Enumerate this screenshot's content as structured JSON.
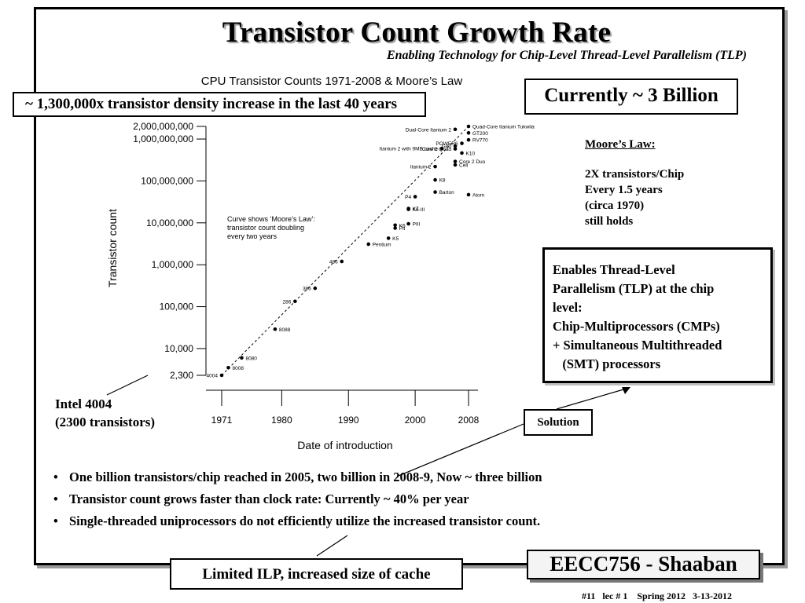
{
  "slide": {
    "title": "Transistor Count Growth Rate",
    "subtitle": "Enabling Technology for Chip-Level Thread-Level Parallelism (TLP)",
    "density_box": "~ 1,300,000x  transistor density increase in the last 40 years",
    "currently_box": "Currently ~ 3 Billion",
    "moores_law": {
      "heading": "Moore’s Law:",
      "lines": [
        "2X transistors/Chip",
        "Every 1.5 years",
        "(circa 1970)",
        "still holds"
      ]
    },
    "tlp_box": [
      "Enables Thread-Level",
      "Parallelism (TLP) at the chip",
      "level:",
      "Chip-Multiprocessors (CMPs)",
      "+ Simultaneous  Multithreaded",
      "   (SMT) processors"
    ],
    "intel_note": [
      "Intel 4004",
      "(2300 transistors)"
    ],
    "solution_box": "Solution",
    "bullets": [
      "One billion transistors/chip reached in 2005, two billion in 2008-9, Now ~ three billion",
      "Transistor count grows faster than clock rate: Currently  ~ 40% per year",
      "Single-threaded uniprocessors do not efficiently utilize the increased transistor count."
    ],
    "ilp_box": "Limited ILP, increased size of cache",
    "course_box": "EECC756 - Shaaban",
    "footer": "#11   lec # 1    Spring 2012   3-13-2012"
  },
  "chart_data": {
    "type": "scatter",
    "title": "CPU Transistor Counts 1971-2008 & Moore’s Law",
    "xlabel": "Date of introduction",
    "ylabel": "Transistor count",
    "y_scale": "log",
    "xlim": [
      1971,
      2008
    ],
    "x_ticks": [
      1971,
      1980,
      1990,
      2000,
      2008
    ],
    "y_ticks": [
      {
        "value": 2300,
        "label": "2,300"
      },
      {
        "value": 10000,
        "label": "10,000"
      },
      {
        "value": 100000,
        "label": "100,000"
      },
      {
        "value": 1000000,
        "label": "1,000,000"
      },
      {
        "value": 10000000,
        "label": "10,000,000"
      },
      {
        "value": 100000000,
        "label": "100,000,000"
      },
      {
        "value": 1000000000,
        "label": "1,000,000,000"
      },
      {
        "value": 2000000000,
        "label": "2,000,000,000"
      }
    ],
    "annotation": [
      "Curve shows ‘Moore’s Law’:",
      "transistor count doubling",
      "every two years"
    ],
    "trend": {
      "from": [
        1971,
        2300
      ],
      "to": [
        2008,
        2000000000
      ]
    },
    "points": [
      {
        "label": "4004",
        "x": 1971,
        "y": 2300,
        "side": "left"
      },
      {
        "label": "8008",
        "x": 1972,
        "y": 3500,
        "side": "right"
      },
      {
        "label": "8080",
        "x": 1974,
        "y": 6000,
        "side": "right"
      },
      {
        "label": "8088",
        "x": 1979,
        "y": 29000,
        "side": "right"
      },
      {
        "label": "286",
        "x": 1982,
        "y": 134000,
        "side": "left"
      },
      {
        "label": "386",
        "x": 1985,
        "y": 275000,
        "side": "left"
      },
      {
        "label": "486",
        "x": 1989,
        "y": 1200000,
        "side": "left"
      },
      {
        "label": "Pentium",
        "x": 1993,
        "y": 3100000,
        "side": "right"
      },
      {
        "label": "K5",
        "x": 1996,
        "y": 4300000,
        "side": "right"
      },
      {
        "label": "K6",
        "x": 1997,
        "y": 8800000,
        "side": "right"
      },
      {
        "label": "PII",
        "x": 1997,
        "y": 7500000,
        "side": "right"
      },
      {
        "label": "PIII",
        "x": 1999,
        "y": 9500000,
        "side": "right"
      },
      {
        "label": "K6-III",
        "x": 1999,
        "y": 21000000,
        "side": "right"
      },
      {
        "label": "K7",
        "x": 1999,
        "y": 22000000,
        "side": "right"
      },
      {
        "label": "P4",
        "x": 2000,
        "y": 42000000,
        "side": "left"
      },
      {
        "label": "Barton",
        "x": 2003,
        "y": 54300000,
        "side": "right"
      },
      {
        "label": "K8",
        "x": 2003,
        "y": 105900000,
        "side": "right"
      },
      {
        "label": "Atom",
        "x": 2008,
        "y": 47000000,
        "side": "right"
      },
      {
        "label": "Itanium 2",
        "x": 2003,
        "y": 220000000,
        "side": "left"
      },
      {
        "label": "Cell",
        "x": 2006,
        "y": 241000000,
        "side": "right"
      },
      {
        "label": "Core 2 Duo",
        "x": 2006,
        "y": 291000000,
        "side": "right"
      },
      {
        "label": "Core 2 Quad",
        "x": 2006,
        "y": 582000000,
        "side": "left"
      },
      {
        "label": "K10",
        "x": 2007,
        "y": 463000000,
        "side": "right"
      },
      {
        "label": "Itanium 2 with 9MB cache",
        "x": 2004,
        "y": 592000000,
        "side": "left"
      },
      {
        "label": "G80",
        "x": 2006,
        "y": 681000000,
        "side": "left"
      },
      {
        "label": "POWER6",
        "x": 2007,
        "y": 789000000,
        "side": "left"
      },
      {
        "label": "RV770",
        "x": 2008,
        "y": 956000000,
        "side": "right"
      },
      {
        "label": "GT200",
        "x": 2008,
        "y": 1400000000,
        "side": "right"
      },
      {
        "label": "Dual-Core Itanium 2",
        "x": 2006,
        "y": 1700000000,
        "side": "left"
      },
      {
        "label": "Quad-Core Itanium Tukwila",
        "x": 2008,
        "y": 2000000000,
        "side": "right"
      }
    ]
  }
}
